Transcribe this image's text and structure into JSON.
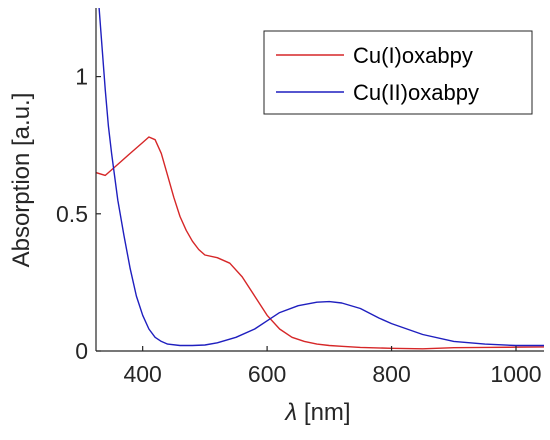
{
  "chart_data": {
    "type": "line",
    "title": "",
    "xlabel_symbol": "λ",
    "xlabel_unit": " [nm]",
    "ylabel": "Absorption [a.u.]",
    "xlim": [
      325,
      1045
    ],
    "ylim": [
      0,
      1.25
    ],
    "xticks": [
      400,
      600,
      800,
      1000
    ],
    "yticks": [
      0,
      0.5,
      1
    ],
    "ytick_labels": [
      "0",
      "0.5",
      "1"
    ],
    "grid": false,
    "legend_position": "top-right",
    "series": [
      {
        "name": "Cu(I)oxabpy",
        "color": "#d62728",
        "x": [
          325,
          340,
          360,
          380,
          400,
          410,
          420,
          430,
          440,
          450,
          460,
          470,
          480,
          490,
          500,
          520,
          540,
          560,
          580,
          600,
          620,
          640,
          660,
          680,
          700,
          720,
          750,
          800,
          850,
          900,
          950,
          1000,
          1045
        ],
        "y": [
          0.65,
          0.64,
          0.68,
          0.72,
          0.76,
          0.78,
          0.77,
          0.72,
          0.64,
          0.56,
          0.49,
          0.44,
          0.4,
          0.37,
          0.35,
          0.34,
          0.32,
          0.27,
          0.2,
          0.13,
          0.08,
          0.05,
          0.035,
          0.025,
          0.02,
          0.017,
          0.013,
          0.01,
          0.008,
          0.012,
          0.013,
          0.014,
          0.015
        ]
      },
      {
        "name": "Cu(II)oxabpy",
        "color": "#1f1fbf",
        "x": [
          330,
          335,
          340,
          345,
          350,
          360,
          370,
          380,
          390,
          400,
          410,
          420,
          430,
          440,
          460,
          480,
          500,
          520,
          550,
          580,
          600,
          620,
          650,
          680,
          700,
          720,
          750,
          780,
          800,
          850,
          900,
          950,
          1000,
          1045
        ],
        "y": [
          1.25,
          1.1,
          0.95,
          0.82,
          0.72,
          0.55,
          0.42,
          0.3,
          0.2,
          0.13,
          0.08,
          0.05,
          0.035,
          0.025,
          0.02,
          0.02,
          0.022,
          0.03,
          0.05,
          0.08,
          0.11,
          0.14,
          0.165,
          0.178,
          0.18,
          0.175,
          0.155,
          0.12,
          0.1,
          0.06,
          0.035,
          0.025,
          0.02,
          0.02
        ]
      }
    ]
  }
}
